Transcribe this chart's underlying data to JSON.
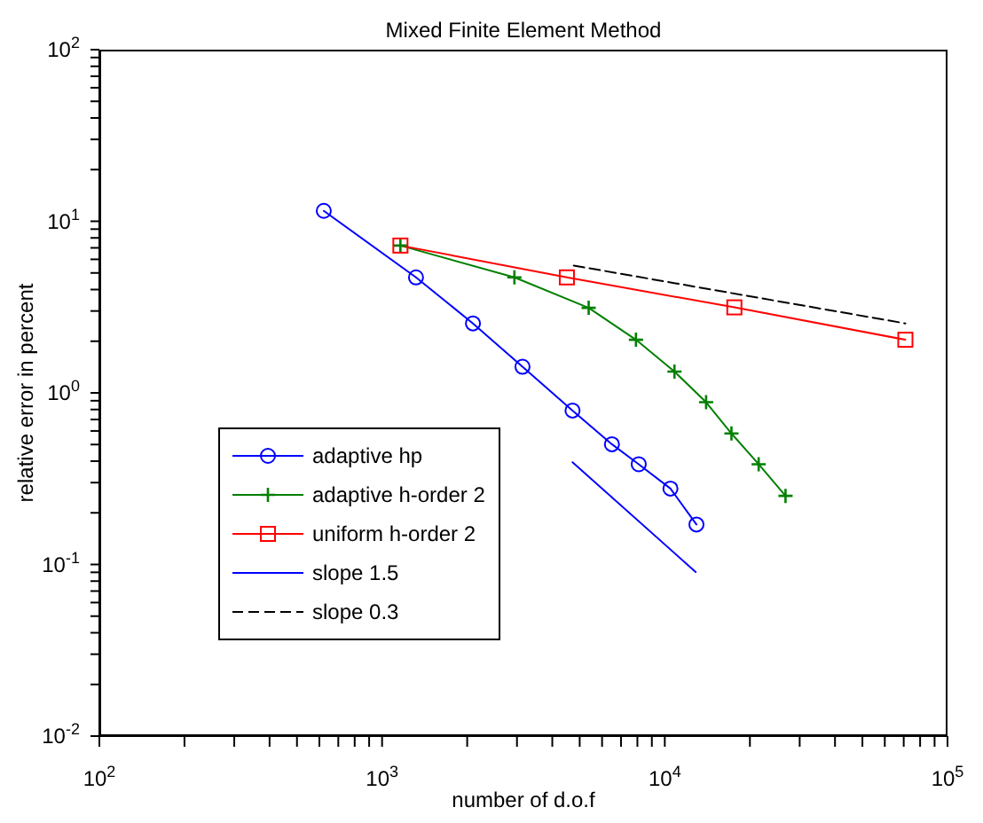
{
  "chart_data": {
    "type": "line",
    "title": "Mixed Finite Element Method",
    "xlabel": "number of d.o.f",
    "ylabel": "relative error in percent",
    "log": "xy",
    "grid": false,
    "legend": "bottom left",
    "xlim": [
      100,
      100000
    ],
    "xticks": [
      {
        "value": 100,
        "label": "10$^{2}$"
      },
      {
        "value": 200,
        "label": null
      },
      {
        "value": 300,
        "label": null
      },
      {
        "value": 400,
        "label": null
      },
      {
        "value": 500,
        "label": null
      },
      {
        "value": 600,
        "label": null
      },
      {
        "value": 700,
        "label": null
      },
      {
        "value": 800,
        "label": null
      },
      {
        "value": 900,
        "label": null
      },
      {
        "value": 1000,
        "label": "10$^{3}$"
      },
      {
        "value": 2000,
        "label": null
      },
      {
        "value": 3000,
        "label": null
      },
      {
        "value": 4000,
        "label": null
      },
      {
        "value": 5000,
        "label": null
      },
      {
        "value": 6000,
        "label": null
      },
      {
        "value": 7000,
        "label": null
      },
      {
        "value": 8000,
        "label": null
      },
      {
        "value": 9000,
        "label": null
      },
      {
        "value": 10000,
        "label": "10$^{4}$"
      },
      {
        "value": 20000,
        "label": null
      },
      {
        "value": 30000,
        "label": null
      },
      {
        "value": 40000,
        "label": null
      },
      {
        "value": 50000,
        "label": null
      },
      {
        "value": 60000,
        "label": null
      },
      {
        "value": 70000,
        "label": null
      },
      {
        "value": 80000,
        "label": null
      },
      {
        "value": 90000,
        "label": null
      },
      {
        "value": 100000,
        "label": "10$^{5}$"
      }
    ],
    "ylim": [
      0.01,
      100
    ],
    "yticks": [
      {
        "value": 0.01,
        "label": "10$^{-2}$"
      },
      {
        "value": 0.02,
        "label": null
      },
      {
        "value": 0.03,
        "label": null
      },
      {
        "value": 0.04,
        "label": null
      },
      {
        "value": 0.05,
        "label": null
      },
      {
        "value": 0.06,
        "label": null
      },
      {
        "value": 0.07,
        "label": null
      },
      {
        "value": 0.08,
        "label": null
      },
      {
        "value": 0.09,
        "label": null
      },
      {
        "value": 0.1,
        "label": "10$^{-1}$"
      },
      {
        "value": 0.2,
        "label": null
      },
      {
        "value": 0.3,
        "label": null
      },
      {
        "value": 0.4,
        "label": null
      },
      {
        "value": 0.5,
        "label": null
      },
      {
        "value": 0.6,
        "label": null
      },
      {
        "value": 0.7,
        "label": null
      },
      {
        "value": 0.8,
        "label": null
      },
      {
        "value": 0.9,
        "label": null
      },
      {
        "value": 1,
        "label": "10$^{0}$"
      },
      {
        "value": 2,
        "label": null
      },
      {
        "value": 3,
        "label": null
      },
      {
        "value": 4,
        "label": null
      },
      {
        "value": 5,
        "label": null
      },
      {
        "value": 6,
        "label": null
      },
      {
        "value": 7,
        "label": null
      },
      {
        "value": 8,
        "label": null
      },
      {
        "value": 9,
        "label": null
      },
      {
        "value": 10,
        "label": "10$^{1}$"
      },
      {
        "value": 20,
        "label": null
      },
      {
        "value": 30,
        "label": null
      },
      {
        "value": 40,
        "label": null
      },
      {
        "value": 50,
        "label": null
      },
      {
        "value": 60,
        "label": null
      },
      {
        "value": 70,
        "label": null
      },
      {
        "value": 80,
        "label": null
      },
      {
        "value": 90,
        "label": null
      },
      {
        "value": 100,
        "label": "10$^{2}$"
      }
    ],
    "series": [
      {
        "name": "adaptive hp",
        "color": "#0000ff",
        "marker": "circle",
        "line_style": "solid",
        "x": [
          622,
          1318,
          2096,
          3138,
          4717,
          6501,
          8087,
          10470,
          12940
        ],
        "values": [
          11.5,
          4.71,
          2.54,
          1.42,
          0.789,
          0.502,
          0.384,
          0.277,
          0.171
        ]
      },
      {
        "name": "adaptive h-order 2",
        "color": "#008000",
        "marker": "cross",
        "line_style": "solid",
        "x": [
          1161,
          2938,
          5379,
          7907,
          10820,
          14000,
          17210,
          21480,
          26730
        ],
        "values": [
          7.22,
          4.71,
          3.13,
          2.04,
          1.33,
          0.882,
          0.58,
          0.384,
          0.251
        ]
      },
      {
        "name": "uniform h-order 2",
        "color": "#ff0000",
        "marker": "square",
        "line_style": "solid",
        "x": [
          1161,
          4504,
          17620,
          70950
        ],
        "values": [
          7.22,
          4.71,
          3.15,
          2.04
        ]
      },
      {
        "name": "slope 1.5",
        "color": "#0000ff",
        "marker": "none",
        "line_style": "solid",
        "x": [
          4717,
          12860
        ],
        "values": [
          0.394,
          0.0904
        ]
      },
      {
        "name": "slope 0.3",
        "color": "#000000",
        "marker": "none",
        "line_style": "dashed",
        "x": [
          4765,
          70950
        ],
        "values": [
          5.52,
          2.54
        ]
      }
    ]
  }
}
